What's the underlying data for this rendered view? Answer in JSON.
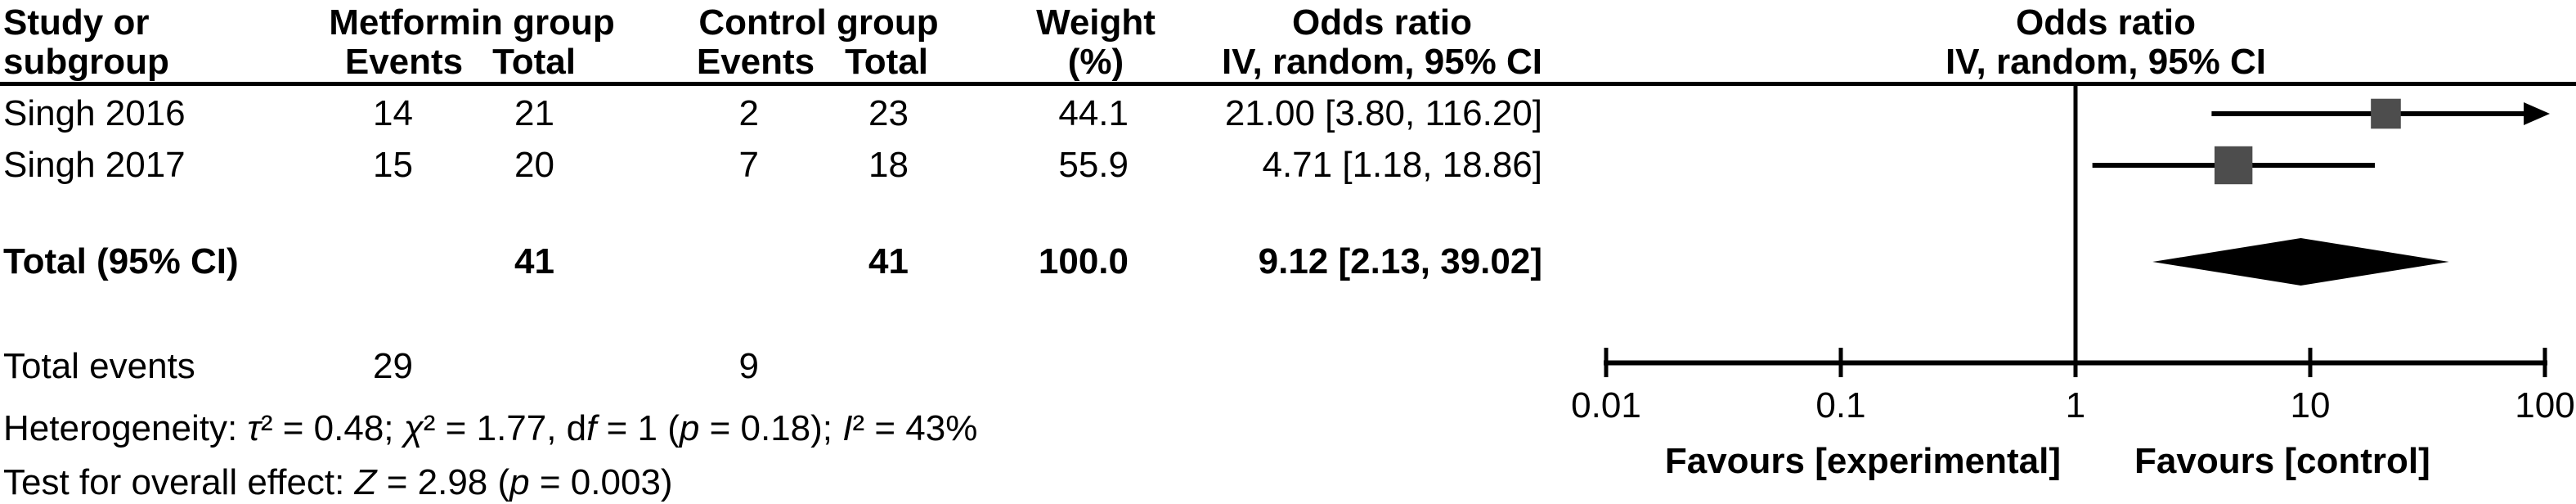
{
  "table": {
    "header": {
      "study_line1": "Study or",
      "study_line2": "subgroup",
      "group1_label": "Metformin group",
      "group2_label": "Control group",
      "events_label": "Events",
      "total_label": "Total",
      "weight_line1": "Weight",
      "weight_line2": "(%)",
      "or_line1": "Odds ratio",
      "or_line2": "IV, random, 95% CI"
    },
    "rows": [
      {
        "study": "Singh 2016",
        "m_events": "14",
        "m_total": "21",
        "c_events": "2",
        "c_total": "23",
        "weight": "44.1",
        "or_ci": "21.00 [3.80, 116.20]"
      },
      {
        "study": "Singh 2017",
        "m_events": "15",
        "m_total": "20",
        "c_events": "7",
        "c_total": "18",
        "weight": "55.9",
        "or_ci": "4.71 [1.18, 18.86]"
      }
    ],
    "total_row": {
      "label": "Total (95% CI)",
      "m_total": "41",
      "c_total": "41",
      "weight": "100.0",
      "or_ci": "9.12 [2.13, 39.02]"
    },
    "total_events": {
      "label": "Total events",
      "m_events": "29",
      "c_events": "9"
    },
    "heterogeneity_segments": [
      {
        "t": "Heterogeneity: "
      },
      {
        "t": "τ",
        "i": true
      },
      {
        "t": "² = 0.48; "
      },
      {
        "t": "χ",
        "i": true
      },
      {
        "t": "² = 1.77, d"
      },
      {
        "t": "f",
        "i": true
      },
      {
        "t": " = 1 ("
      },
      {
        "t": "p",
        "i": true
      },
      {
        "t": " = 0.18); "
      },
      {
        "t": "I",
        "i": true
      },
      {
        "t": "² = 43%"
      }
    ],
    "overall_effect_segments": [
      {
        "t": "Test for overall effect: "
      },
      {
        "t": "Z",
        "i": true
      },
      {
        "t": " = 2.98 ("
      },
      {
        "t": "p",
        "i": true
      },
      {
        "t": " = 0.003)"
      }
    ]
  },
  "plot": {
    "header_line1": "Odds ratio",
    "header_line2": "IV, random, 95% CI",
    "colors": {
      "square": "#4d4d4d",
      "diamond": "#000000",
      "line": "#000000",
      "text": "#000000"
    }
  },
  "chart_data": {
    "type": "forest",
    "effect_measure": "Odds ratio",
    "model": "IV, random, 95% CI",
    "x_scale": "log10",
    "x_ticks": [
      0.01,
      0.1,
      1,
      10,
      100
    ],
    "x_tick_labels": [
      "0.01",
      "0.1",
      "1",
      "10",
      "100"
    ],
    "xlim": [
      0.01,
      100
    ],
    "null_line": 1,
    "studies": [
      {
        "name": "Singh 2016",
        "metformin_events": 14,
        "metformin_total": 21,
        "control_events": 2,
        "control_total": 23,
        "weight_pct": 44.1,
        "or": 21.0,
        "ci_low": 3.8,
        "ci_high": 116.2
      },
      {
        "name": "Singh 2017",
        "metformin_events": 15,
        "metformin_total": 20,
        "control_events": 7,
        "control_total": 18,
        "weight_pct": 55.9,
        "or": 4.71,
        "ci_low": 1.18,
        "ci_high": 18.86
      }
    ],
    "total": {
      "name": "Total (95% CI)",
      "metformin_total": 41,
      "control_total": 41,
      "weight_pct": 100.0,
      "or": 9.12,
      "ci_low": 2.13,
      "ci_high": 39.02
    },
    "total_events": {
      "metformin": 29,
      "control": 9
    },
    "heterogeneity": "τ² = 0.48; χ² = 1.77, df = 1 (p = 0.18); I² = 43%",
    "overall_effect": "Z = 2.98 (p = 0.003)",
    "favours_left": "Favours [experimental]",
    "favours_right": "Favours [control]",
    "legend_position": "none",
    "grid": false
  }
}
